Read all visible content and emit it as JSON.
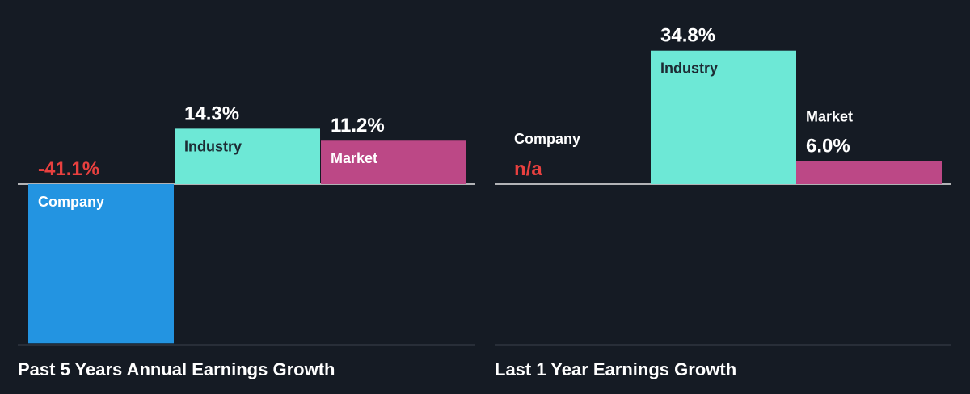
{
  "colors": {
    "background": "#151b24",
    "company": "#2394e1",
    "industry": "#6de8d6",
    "market": "#bc4886",
    "negative_text": "#e8403f",
    "positive_text": "#ffffff",
    "label_on_bar": "#1d2b34",
    "label_light": "#ffffff",
    "axis": "#e6e6e6",
    "bottom_rule": "#3a414b"
  },
  "chart_data": [
    {
      "type": "bar",
      "title": "Past 5 Years Annual Earnings Growth",
      "categories": [
        "Company",
        "Industry",
        "Market"
      ],
      "values": [
        -41.1,
        14.3,
        11.2
      ],
      "value_labels": [
        "-41.1%",
        "14.3%",
        "11.2%"
      ],
      "unit": "%"
    },
    {
      "type": "bar",
      "title": "Last 1 Year Earnings Growth",
      "categories": [
        "Company",
        "Industry",
        "Market"
      ],
      "values": [
        null,
        34.8,
        6.0
      ],
      "value_labels": [
        "n/a",
        "34.8%",
        "6.0%"
      ],
      "unit": "%"
    }
  ]
}
